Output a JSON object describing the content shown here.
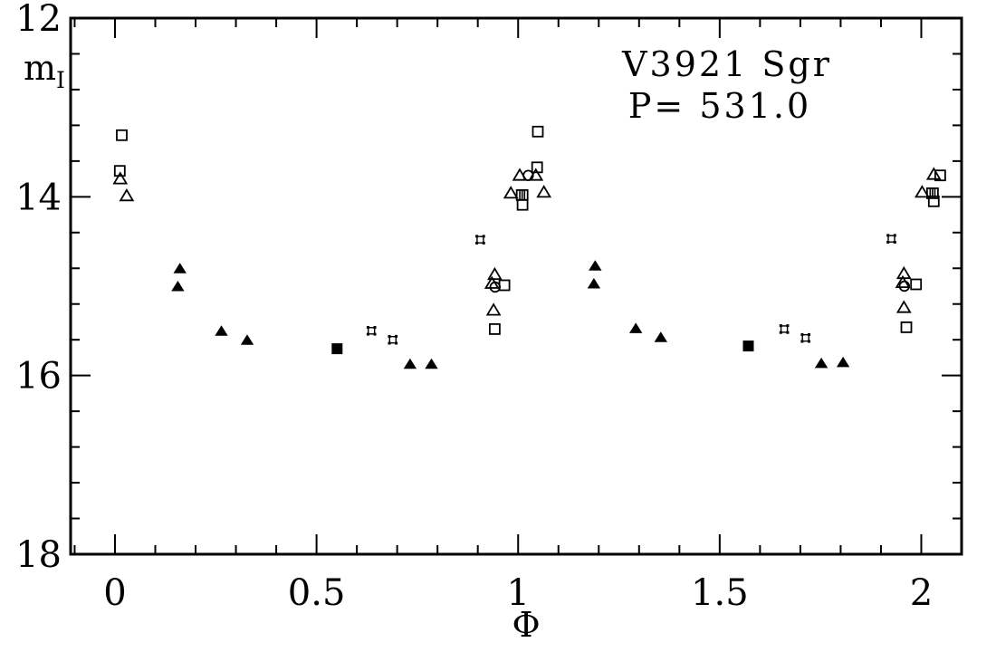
{
  "colors": {
    "ink": "#000000",
    "background": "#ffffff"
  },
  "chart_data": {
    "type": "scatter",
    "title": "V3921 Sgr",
    "subtitle": "P= 531.0",
    "xlabel": "Φ",
    "ylabel_main": "m",
    "ylabel_sub": "I",
    "xlim": [
      -0.11,
      2.1
    ],
    "ylim": [
      12,
      18
    ],
    "y_axis_inverted_magnitudes": true,
    "grid": false,
    "legend": "none",
    "x_ticks_major": [
      0,
      0.5,
      1,
      1.5,
      2
    ],
    "x_tick_labels": [
      "0",
      "0.5",
      "1",
      "1.5",
      "2"
    ],
    "x_minor_step": 0.1,
    "y_ticks_major": [
      12,
      14,
      16,
      18
    ],
    "y_tick_labels": [
      "12",
      "14",
      "16",
      "18"
    ],
    "y_minor_step": 0.4,
    "series": [
      {
        "name": "open-square",
        "marker": "open-square",
        "points": [
          [
            0.017,
            13.31
          ],
          [
            0.012,
            13.71
          ],
          [
            1.049,
            13.27
          ],
          [
            1.047,
            13.67
          ],
          [
            1.011,
            14.09
          ],
          [
            0.966,
            14.99
          ],
          [
            0.942,
            15.48
          ],
          [
            2.047,
            13.76
          ],
          [
            2.031,
            14.05
          ],
          [
            1.987,
            14.98
          ],
          [
            1.963,
            15.46
          ]
        ]
      },
      {
        "name": "striped-square",
        "marker": "striped-square",
        "points": [
          [
            1.01,
            13.98
          ],
          [
            2.028,
            13.96
          ]
        ]
      },
      {
        "name": "open-triangle",
        "marker": "open-triangle",
        "points": [
          [
            0.013,
            13.8
          ],
          [
            0.029,
            13.99
          ],
          [
            1.004,
            13.76
          ],
          [
            1.044,
            13.76
          ],
          [
            0.982,
            13.96
          ],
          [
            1.064,
            13.95
          ],
          [
            0.942,
            14.87
          ],
          [
            0.935,
            14.97
          ],
          [
            0.939,
            15.27
          ],
          [
            2.031,
            13.75
          ],
          [
            2.002,
            13.95
          ],
          [
            1.957,
            14.86
          ],
          [
            1.954,
            14.96
          ],
          [
            1.957,
            15.24
          ]
        ]
      },
      {
        "name": "open-circle",
        "marker": "open-circle",
        "points": [
          [
            1.025,
            13.76
          ],
          [
            0.943,
            15.01
          ],
          [
            1.958,
            15.0
          ]
        ]
      },
      {
        "name": "filled-triangle",
        "marker": "filled-triangle",
        "points": [
          [
            0.161,
            14.8
          ],
          [
            0.156,
            15.0
          ],
          [
            0.264,
            15.5
          ],
          [
            0.328,
            15.6
          ],
          [
            0.732,
            15.87
          ],
          [
            0.785,
            15.87
          ],
          [
            1.191,
            14.77
          ],
          [
            1.188,
            14.97
          ],
          [
            1.292,
            15.47
          ],
          [
            1.354,
            15.57
          ],
          [
            1.752,
            15.86
          ],
          [
            1.806,
            15.85
          ]
        ]
      },
      {
        "name": "filled-square",
        "marker": "filled-square",
        "points": [
          [
            0.551,
            15.7
          ],
          [
            1.571,
            15.67
          ]
        ]
      },
      {
        "name": "open-star",
        "marker": "open-star",
        "points": [
          [
            0.906,
            14.48
          ],
          [
            0.636,
            15.5
          ],
          [
            0.689,
            15.6
          ],
          [
            1.926,
            14.47
          ],
          [
            1.66,
            15.48
          ],
          [
            1.713,
            15.58
          ]
        ]
      }
    ]
  }
}
